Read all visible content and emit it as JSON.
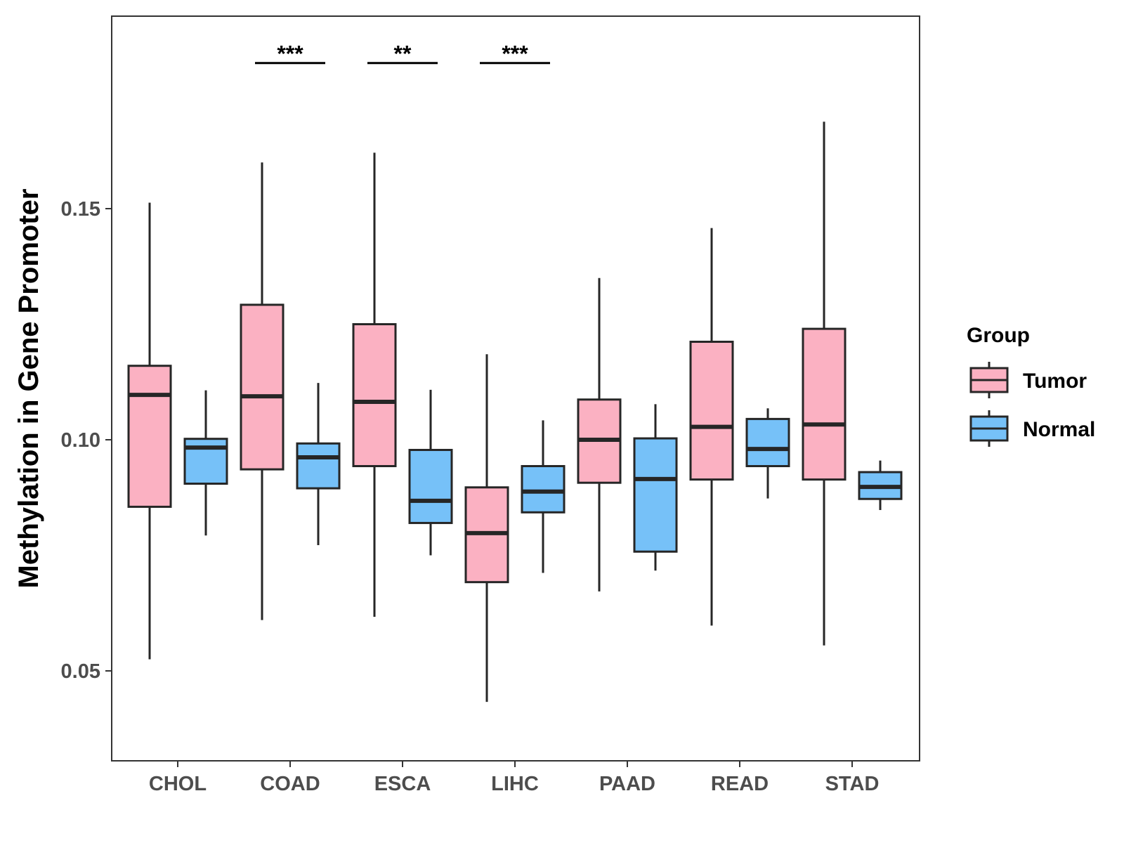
{
  "chart_data": {
    "type": "boxplot",
    "title": "",
    "xlabel": "",
    "ylabel": "Methylation in Gene Promoter",
    "ylim": [
      0.031,
      0.192
    ],
    "yticks": [
      0.05,
      0.1,
      0.15
    ],
    "ytick_labels": [
      "0.05",
      "0.10",
      "0.15"
    ],
    "grid": false,
    "categories": [
      "CHOL",
      "COAD",
      "ESCA",
      "LIHC",
      "PAAD",
      "READ",
      "STAD"
    ],
    "legend": {
      "title": "Group",
      "position": "right",
      "items": [
        {
          "name": "Tumor",
          "color": "#FBB1C2"
        },
        {
          "name": "Normal",
          "color": "#76C1F8"
        }
      ]
    },
    "series": [
      {
        "name": "Tumor",
        "color": "#FBB1C2",
        "boxes": [
          {
            "min": 0.0525,
            "q1": 0.0855,
            "median": 0.1097,
            "q3": 0.116,
            "max": 0.1513
          },
          {
            "min": 0.061,
            "q1": 0.0936,
            "median": 0.1094,
            "q3": 0.1292,
            "max": 0.16
          },
          {
            "min": 0.0617,
            "q1": 0.0943,
            "median": 0.1082,
            "q3": 0.125,
            "max": 0.1621
          },
          {
            "min": 0.0433,
            "q1": 0.0692,
            "median": 0.0798,
            "q3": 0.0897,
            "max": 0.1185
          },
          {
            "min": 0.0672,
            "q1": 0.0907,
            "median": 0.1,
            "q3": 0.1087,
            "max": 0.135
          },
          {
            "min": 0.0598,
            "q1": 0.0914,
            "median": 0.1028,
            "q3": 0.1212,
            "max": 0.1458
          },
          {
            "min": 0.0555,
            "q1": 0.0914,
            "median": 0.1033,
            "q3": 0.124,
            "max": 0.1688
          }
        ]
      },
      {
        "name": "Normal",
        "color": "#76C1F8",
        "boxes": [
          {
            "min": 0.0793,
            "q1": 0.0905,
            "median": 0.0983,
            "q3": 0.1002,
            "max": 0.1107
          },
          {
            "min": 0.0772,
            "q1": 0.0895,
            "median": 0.0962,
            "q3": 0.0992,
            "max": 0.1123
          },
          {
            "min": 0.075,
            "q1": 0.082,
            "median": 0.0868,
            "q3": 0.0978,
            "max": 0.1108
          },
          {
            "min": 0.0712,
            "q1": 0.0843,
            "median": 0.0888,
            "q3": 0.0943,
            "max": 0.1042
          },
          {
            "min": 0.0717,
            "q1": 0.0758,
            "median": 0.0915,
            "q3": 0.1003,
            "max": 0.1077
          },
          {
            "min": 0.0873,
            "q1": 0.0943,
            "median": 0.098,
            "q3": 0.1045,
            "max": 0.1068
          },
          {
            "min": 0.0848,
            "q1": 0.0872,
            "median": 0.0898,
            "q3": 0.093,
            "max": 0.0955
          }
        ]
      }
    ],
    "significance": [
      {
        "category": "COAD",
        "label": "***",
        "y": 0.1815
      },
      {
        "category": "ESCA",
        "label": "**",
        "y": 0.1815
      },
      {
        "category": "LIHC",
        "label": "***",
        "y": 0.1815
      }
    ]
  }
}
